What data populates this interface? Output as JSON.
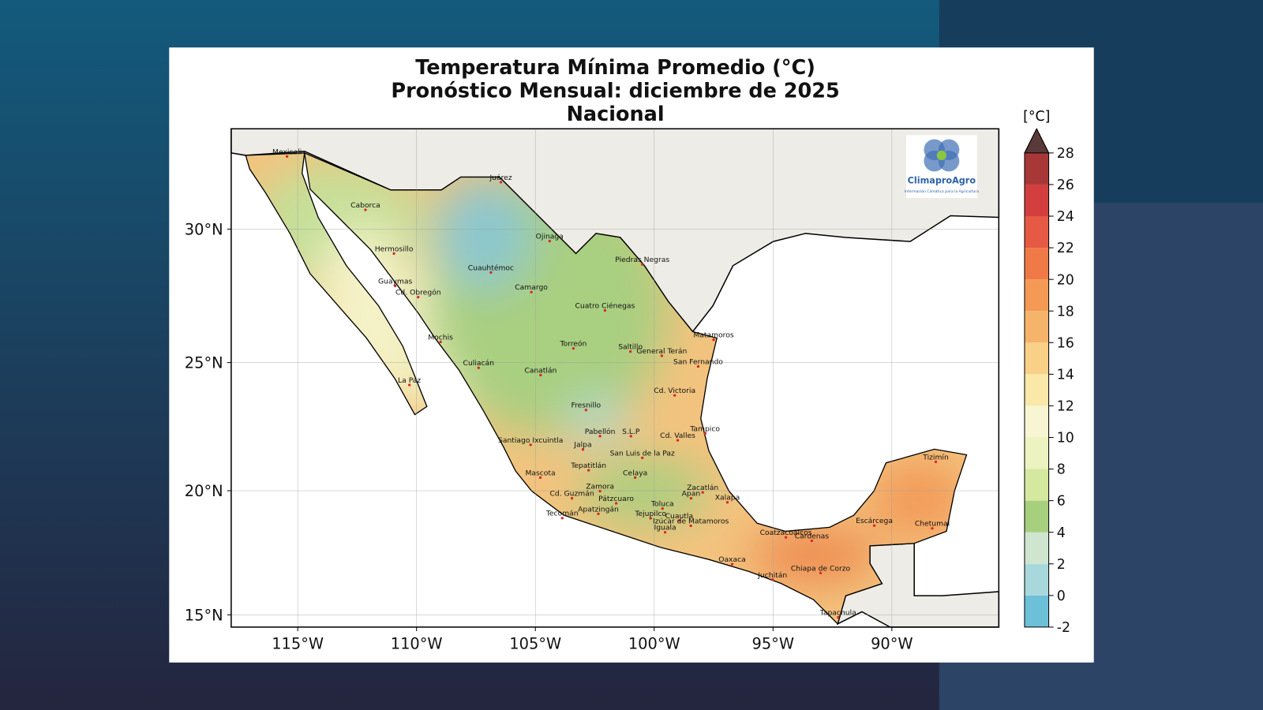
{
  "title": [
    "Temperatura Mínima Promedio (°C)",
    "Pronóstico Mensual: diciembre de 2025",
    "Nacional"
  ],
  "map": {
    "lon_range": [
      -117.8,
      -85.5
    ],
    "lat_range": [
      14.5,
      33.6
    ],
    "lon_ticks": [
      {
        "value": -115,
        "label": "115°W"
      },
      {
        "value": -110,
        "label": "110°W"
      },
      {
        "value": -105,
        "label": "105°W"
      },
      {
        "value": -100,
        "label": "100°W"
      },
      {
        "value": -95,
        "label": "95°W"
      },
      {
        "value": -90,
        "label": "90°W"
      }
    ],
    "lat_ticks": [
      {
        "value": 15,
        "label": "15°N"
      },
      {
        "value": 20,
        "label": "20°N"
      },
      {
        "value": 25,
        "label": "25°N"
      },
      {
        "value": 30,
        "label": "30°N"
      }
    ],
    "cities": [
      {
        "name": "Mexicali",
        "lon": -115.45,
        "lat": 32.62
      },
      {
        "name": "Juárez",
        "lon": -106.45,
        "lat": 31.7
      },
      {
        "name": "Caborca",
        "lon": -112.15,
        "lat": 30.7
      },
      {
        "name": "Ojinaga",
        "lon": -104.4,
        "lat": 29.56
      },
      {
        "name": "Hermosillo",
        "lon": -110.95,
        "lat": 29.1
      },
      {
        "name": "Piedras Negras",
        "lon": -100.5,
        "lat": 28.7
      },
      {
        "name": "Cuauhtémoc",
        "lon": -106.87,
        "lat": 28.4
      },
      {
        "name": "Guaymas",
        "lon": -110.9,
        "lat": 27.9
      },
      {
        "name": "Camargo",
        "lon": -105.17,
        "lat": 27.67
      },
      {
        "name": "Cd. Obregón",
        "lon": -109.93,
        "lat": 27.48
      },
      {
        "name": "Cuatro Ciénegas",
        "lon": -102.07,
        "lat": 26.98
      },
      {
        "name": "Matamoros",
        "lon": -97.5,
        "lat": 25.87
      },
      {
        "name": "Mochis",
        "lon": -108.99,
        "lat": 25.79
      },
      {
        "name": "Torreón",
        "lon": -103.4,
        "lat": 25.54
      },
      {
        "name": "Saltillo",
        "lon": -101.0,
        "lat": 25.42
      },
      {
        "name": "General Terán",
        "lon": -99.68,
        "lat": 25.26
      },
      {
        "name": "San Fernando",
        "lon": -98.15,
        "lat": 24.85
      },
      {
        "name": "Culiacán",
        "lon": -107.39,
        "lat": 24.8
      },
      {
        "name": "Canatlán",
        "lon": -104.78,
        "lat": 24.52
      },
      {
        "name": "La Paz",
        "lon": -110.3,
        "lat": 24.14
      },
      {
        "name": "Cd. Victoria",
        "lon": -99.14,
        "lat": 23.74
      },
      {
        "name": "Fresnillo",
        "lon": -102.87,
        "lat": 23.17
      },
      {
        "name": "Tampico",
        "lon": -97.86,
        "lat": 22.25
      },
      {
        "name": "Pabellón",
        "lon": -102.28,
        "lat": 22.15
      },
      {
        "name": "S.L.P",
        "lon": -100.98,
        "lat": 22.15
      },
      {
        "name": "Cd. Valles",
        "lon": -99.01,
        "lat": 21.99
      },
      {
        "name": "Santiago Ixcuintla",
        "lon": -105.2,
        "lat": 21.81
      },
      {
        "name": "Jalpa",
        "lon": -103.0,
        "lat": 21.63
      },
      {
        "name": "San Luis de la Paz",
        "lon": -100.5,
        "lat": 21.3
      },
      {
        "name": "Tizimín",
        "lon": -88.15,
        "lat": 21.14
      },
      {
        "name": "Tepatitlán",
        "lon": -102.76,
        "lat": 20.81
      },
      {
        "name": "Celaya",
        "lon": -100.8,
        "lat": 20.52
      },
      {
        "name": "Mascota",
        "lon": -104.79,
        "lat": 20.52
      },
      {
        "name": "Zamora",
        "lon": -102.28,
        "lat": 19.98
      },
      {
        "name": "Zacatlán",
        "lon": -97.96,
        "lat": 19.93
      },
      {
        "name": "Cd. Guzmán",
        "lon": -103.46,
        "lat": 19.7
      },
      {
        "name": "Pátzcuaro",
        "lon": -101.6,
        "lat": 19.5
      },
      {
        "name": "Xalapa",
        "lon": -96.92,
        "lat": 19.54
      },
      {
        "name": "Apan",
        "lon": -98.45,
        "lat": 19.7
      },
      {
        "name": "Toluca",
        "lon": -99.65,
        "lat": 19.29
      },
      {
        "name": "Apatzingán",
        "lon": -102.35,
        "lat": 19.08
      },
      {
        "name": "Tecomán",
        "lon": -103.87,
        "lat": 18.91
      },
      {
        "name": "Tejupilco",
        "lon": -100.15,
        "lat": 18.9
      },
      {
        "name": "Cuautla",
        "lon": -98.95,
        "lat": 18.81
      },
      {
        "name": "Izúcar de Matamoros",
        "lon": -98.46,
        "lat": 18.6
      },
      {
        "name": "Iguala",
        "lon": -99.54,
        "lat": 18.34
      },
      {
        "name": "Coatzacoalcos",
        "lon": -94.46,
        "lat": 18.14
      },
      {
        "name": "Escárcega",
        "lon": -90.74,
        "lat": 18.61
      },
      {
        "name": "Chetumal",
        "lon": -88.3,
        "lat": 18.5
      },
      {
        "name": "Cárdenas",
        "lon": -93.37,
        "lat": 18.0
      },
      {
        "name": "Oaxaca",
        "lon": -96.72,
        "lat": 17.06
      },
      {
        "name": "Chiapa de Corzo",
        "lon": -93.0,
        "lat": 16.7
      },
      {
        "name": "Juchitán",
        "lon": -95.02,
        "lat": 16.43
      },
      {
        "name": "Tapachula",
        "lon": -92.26,
        "lat": 14.9
      }
    ]
  },
  "colorbar": {
    "label": "[°C]",
    "range": [
      -2,
      28
    ],
    "ticks": [
      -2,
      0,
      2,
      4,
      6,
      8,
      10,
      12,
      14,
      16,
      18,
      20,
      22,
      24,
      26,
      28
    ],
    "colors": [
      "#6cc0d8",
      "#a8d8dc",
      "#cfe5d0",
      "#a6cf7e",
      "#d4e8a0",
      "#ecf2c0",
      "#f7f5d2",
      "#fae8a8",
      "#f8d088",
      "#f6b46a",
      "#f49a55",
      "#ef7a48",
      "#e65a45",
      "#d33f3f",
      "#a83838"
    ],
    "extend_color": "#5a3a38"
  },
  "logo": {
    "name": "ClimaproAgro",
    "tagline": "Información Climática para la Agricultura"
  }
}
